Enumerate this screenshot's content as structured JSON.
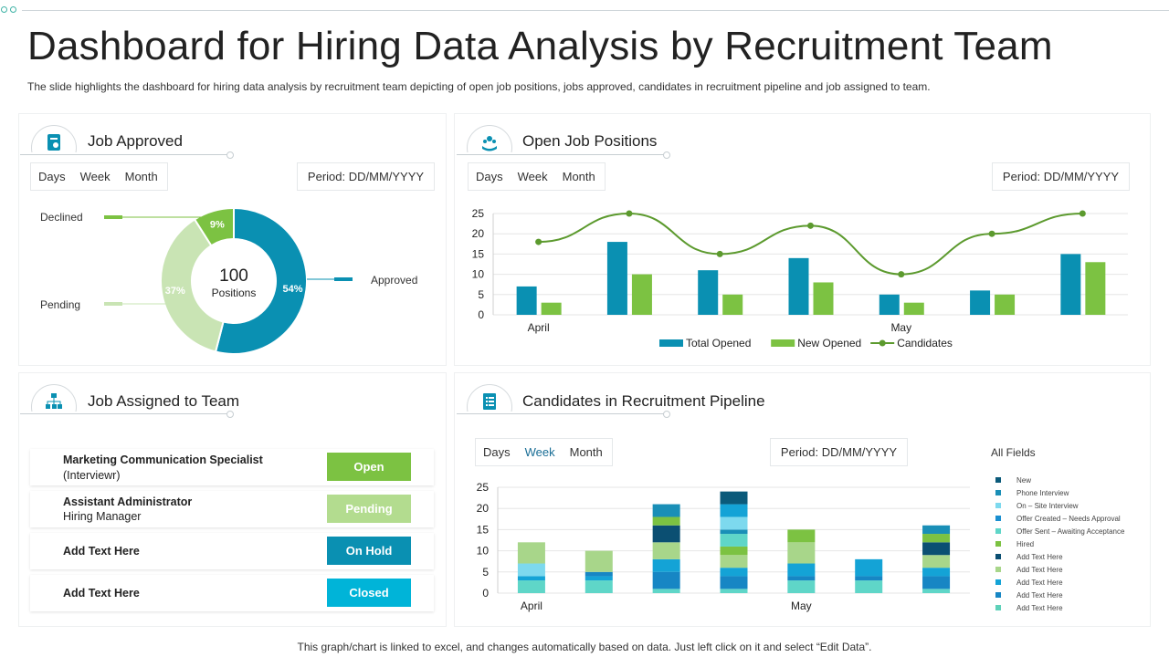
{
  "title": "Dashboard for Hiring Data Analysis  by Recruitment Team",
  "subtitle": "The slide highlights the dashboard for hiring data analysis by recruitment team depicting of open job positions, jobs approved, candidates in recruitment pipeline and job assigned to team.",
  "footer": "This graph/chart is linked to excel,  and changes automatically based on data. Just left click on it and select “Edit Data”.",
  "colors": {
    "teal": "#0a90b2",
    "green": "#7cc242",
    "lightgreen": "#bfdea8",
    "darkteal": "#0a90b2",
    "cyan": "#00b4d8"
  },
  "job_approved": {
    "title": "Job Approved",
    "icon": "document-icon",
    "periods": [
      "Days",
      "Week",
      "Month"
    ],
    "period_label": "Period: DD/MM/YYYY",
    "center_value": "100",
    "center_label": "Positions",
    "labels": {
      "declined": "Declined",
      "pending": "Pending",
      "approved": "Approved"
    }
  },
  "open_jobs": {
    "title": "Open Job Positions",
    "icon": "hands-people-icon",
    "periods": [
      "Days",
      "Week",
      "Month"
    ],
    "period_label": "Period: DD/MM/YYYY"
  },
  "job_assigned": {
    "title": "Job Assigned to Team",
    "icon": "org-chart-icon",
    "rows": [
      {
        "name": "Marketing Communication  Specialist",
        "role": "(Interviewr)",
        "status": "Open",
        "color": "#7cc242"
      },
      {
        "name": "Assistant Administrator",
        "role": "Hiring Manager",
        "status": "Pending",
        "color": "#b3dc8f"
      },
      {
        "name": "Add  Text Here",
        "role": "",
        "status": "On Hold",
        "color": "#0a90b2"
      },
      {
        "name": "Add  Text Here",
        "role": "",
        "status": "Closed",
        "color": "#00b4d8"
      }
    ]
  },
  "pipeline": {
    "title": "Candidates in Recruitment Pipeline",
    "icon": "checklist-icon",
    "periods": [
      "Days",
      "Week",
      "Month"
    ],
    "active_period": "Week",
    "period_label": "Period: DD/MM/YYYY",
    "legend_title": "All Fields"
  },
  "chart_data": [
    {
      "type": "pie",
      "categories": [
        "Approved",
        "Pending",
        "Declined"
      ],
      "values": [
        54,
        37,
        9
      ],
      "labels": [
        "54%",
        "37%",
        "9%"
      ],
      "colors": [
        "#0a90b2",
        "#c9e4b4",
        "#7cc242"
      ]
    },
    {
      "type": "bar",
      "categories": [
        "April",
        "",
        "",
        "",
        "May",
        "",
        ""
      ],
      "xtick_labels": [
        "April",
        "May"
      ],
      "ylim": [
        0,
        25
      ],
      "yticks": [
        0,
        5,
        10,
        15,
        20,
        25
      ],
      "series": [
        {
          "name": "Total Opened",
          "type": "bar",
          "color": "#0a90b2",
          "values": [
            7,
            18,
            11,
            14,
            5,
            6,
            15
          ]
        },
        {
          "name": "New Opened",
          "type": "bar",
          "color": "#7cc242",
          "values": [
            3,
            10,
            5,
            8,
            3,
            5,
            13
          ]
        },
        {
          "name": "Candidates",
          "type": "line",
          "color": "#5c9a2e",
          "values": [
            18,
            25,
            15,
            22,
            10,
            20,
            25
          ]
        }
      ]
    },
    {
      "type": "bar",
      "stacked": true,
      "categories": [
        "April",
        "",
        "",
        "",
        "May",
        "",
        ""
      ],
      "xtick_labels": [
        "April",
        "May"
      ],
      "ylim": [
        0,
        25
      ],
      "yticks": [
        0,
        5,
        10,
        15,
        20,
        25
      ],
      "series": [
        {
          "name": "New",
          "color": "#0b5a7a",
          "values": [
            0,
            0,
            0,
            0,
            0,
            0,
            0
          ]
        },
        {
          "name": "Phone Interview",
          "color": "#1a8fb7",
          "values": [
            0,
            0,
            0,
            0,
            0,
            0,
            0
          ]
        },
        {
          "name": "On – Site Interview",
          "color": "#7dd9ee",
          "values": [
            0,
            0,
            0,
            0,
            0,
            0,
            0
          ]
        },
        {
          "name": "Offer Created  – Needs  Approval",
          "color": "#1a8fd0",
          "values": [
            0,
            0,
            0,
            0,
            0,
            0,
            0
          ]
        },
        {
          "name": "Offer Sent  – Awaiting  Acceptance",
          "color": "#5fd6c8",
          "values": [
            0,
            0,
            0,
            0,
            0,
            0,
            0
          ]
        },
        {
          "name": "Hired",
          "color": "#7cc242",
          "values": [
            0,
            0,
            0,
            0,
            0,
            0,
            0
          ]
        },
        {
          "name": "Add  Text Here",
          "color": "#0b4f72",
          "values": [
            0,
            0,
            0,
            0,
            0,
            0,
            0
          ]
        },
        {
          "name": "Add  Text Here",
          "color": "#a8d68a",
          "values": [
            0,
            0,
            0,
            0,
            0,
            0,
            0
          ]
        },
        {
          "name": "Add  Text Here",
          "color": "#14a3d6",
          "values": [
            0,
            0,
            0,
            0,
            0,
            0,
            0
          ]
        },
        {
          "name": "Add  Text Here",
          "color": "#1786c4",
          "values": [
            0,
            0,
            0,
            0,
            0,
            0,
            0
          ]
        },
        {
          "name": "Add  Text Here",
          "color": "#5ed1b9",
          "values": [
            0,
            0,
            0,
            0,
            0,
            0,
            0
          ]
        }
      ],
      "stacks": [
        [
          {
            "s": 4,
            "v": 3
          },
          {
            "s": 8,
            "v": 1
          },
          {
            "s": 2,
            "v": 3
          },
          {
            "s": 7,
            "v": 5
          }
        ],
        [
          {
            "s": 4,
            "v": 3
          },
          {
            "s": 8,
            "v": 1
          },
          {
            "s": 9,
            "v": 1
          },
          {
            "s": 7,
            "v": 5
          }
        ],
        [
          {
            "s": 4,
            "v": 1
          },
          {
            "s": 9,
            "v": 4
          },
          {
            "s": 8,
            "v": 3
          },
          {
            "s": 7,
            "v": 4
          },
          {
            "s": 6,
            "v": 4
          },
          {
            "s": 5,
            "v": 2
          },
          {
            "s": 1,
            "v": 3
          }
        ],
        [
          {
            "s": 4,
            "v": 1
          },
          {
            "s": 9,
            "v": 3
          },
          {
            "s": 8,
            "v": 2
          },
          {
            "s": 7,
            "v": 3
          },
          {
            "s": 5,
            "v": 2
          },
          {
            "s": 4,
            "v": 3
          },
          {
            "s": 1,
            "v": 1
          },
          {
            "s": 2,
            "v": 3
          },
          {
            "s": 8,
            "v": 3
          },
          {
            "s": 0,
            "v": 3
          }
        ],
        [
          {
            "s": 4,
            "v": 3
          },
          {
            "s": 9,
            "v": 1
          },
          {
            "s": 8,
            "v": 3
          },
          {
            "s": 7,
            "v": 5
          },
          {
            "s": 5,
            "v": 3
          }
        ],
        [
          {
            "s": 4,
            "v": 3
          },
          {
            "s": 9,
            "v": 1
          },
          {
            "s": 8,
            "v": 4
          }
        ],
        [
          {
            "s": 4,
            "v": 1
          },
          {
            "s": 9,
            "v": 3
          },
          {
            "s": 8,
            "v": 2
          },
          {
            "s": 7,
            "v": 3
          },
          {
            "s": 6,
            "v": 3
          },
          {
            "s": 5,
            "v": 2
          },
          {
            "s": 1,
            "v": 2
          }
        ]
      ]
    }
  ]
}
